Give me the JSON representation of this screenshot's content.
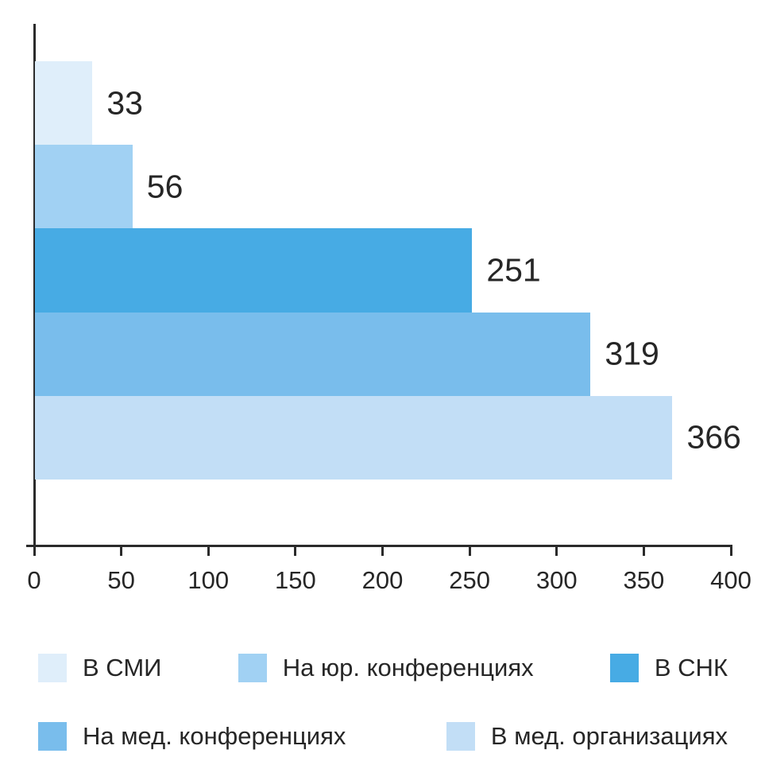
{
  "chart_data": {
    "type": "bar",
    "orientation": "horizontal",
    "title": "",
    "xlabel": "",
    "ylabel": "",
    "categories": [
      "В СМИ",
      "На юр. конференциях",
      "В СНК",
      "На мед. конференциях",
      "В мед. организациях"
    ],
    "values": [
      33,
      56,
      251,
      319,
      366
    ],
    "value_labels": [
      "33",
      "56",
      "251",
      "319",
      "366"
    ],
    "bar_colors": [
      "#DFEEFA",
      "#A1D1F3",
      "#47ABE4",
      "#79BDEC",
      "#C2DEF6"
    ],
    "xlim": [
      0,
      400
    ],
    "x_ticks": [
      0,
      50,
      100,
      150,
      200,
      250,
      300,
      350,
      400
    ],
    "grid": false,
    "legend_position": "bottom",
    "legend": [
      {
        "label": "В СМИ",
        "color": "#DFEEFA"
      },
      {
        "label": "На юр. конференциях",
        "color": "#A1D1F3"
      },
      {
        "label": "В СНК",
        "color": "#47ABE4"
      },
      {
        "label": "На мед. конференциях",
        "color": "#79BDEC"
      },
      {
        "label": "В мед. организациях",
        "color": "#C2DEF6"
      }
    ]
  },
  "colors": {
    "axis": "#2b2b2b",
    "text": "#262626",
    "background": "#ffffff"
  }
}
